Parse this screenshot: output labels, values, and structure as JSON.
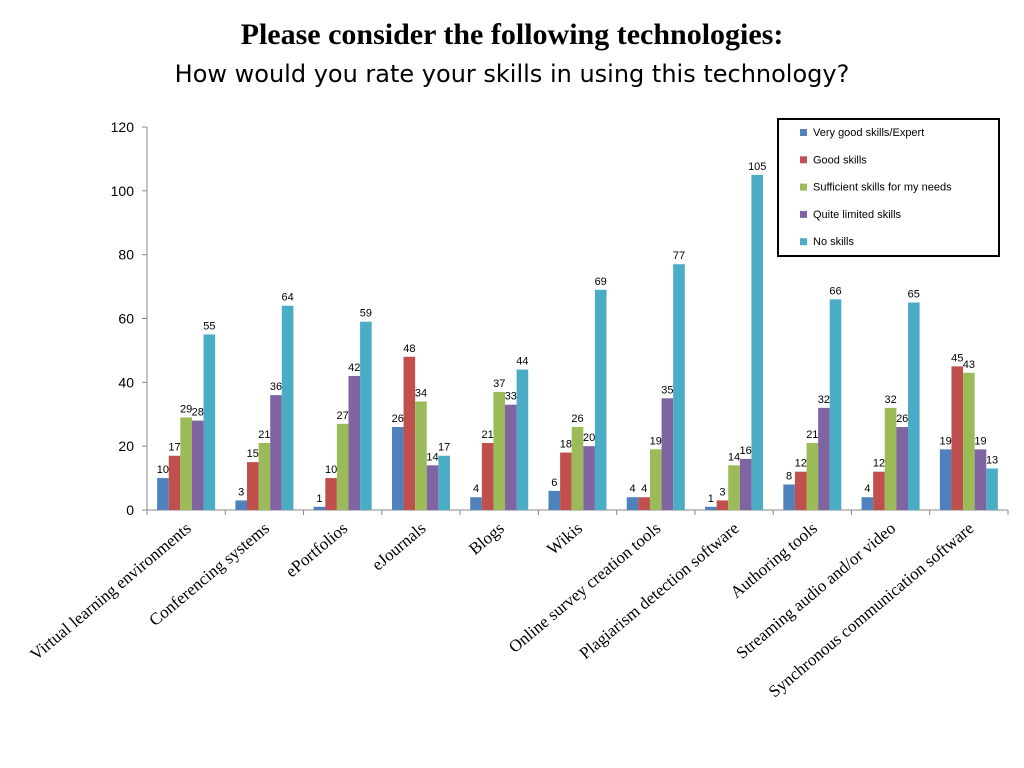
{
  "chart_data": {
    "type": "bar",
    "title": "Please consider the following technologies:",
    "subtitle": "How would you rate your skills in using this technology?",
    "xlabel": "",
    "ylabel": "",
    "ylim": [
      0,
      120
    ],
    "yticks": [
      0,
      20,
      40,
      60,
      80,
      100,
      120
    ],
    "grid": false,
    "legend_position": "top-right",
    "categories": [
      "Virtual learning environments",
      "Conferencing systems",
      "ePortfolios",
      "eJournals",
      "Blogs",
      "Wikis",
      "Online survey creation tools",
      "Plagiarism detection software",
      "Authoring tools",
      "Streaming audio and/or video",
      "Synchronous communication software"
    ],
    "series": [
      {
        "name": "Very good skills/Expert",
        "color": "#4f81bd",
        "values": [
          10,
          3,
          1,
          26,
          4,
          6,
          4,
          1,
          8,
          4,
          19
        ]
      },
      {
        "name": "Good skills",
        "color": "#c0504d",
        "values": [
          17,
          15,
          10,
          48,
          21,
          18,
          4,
          3,
          12,
          12,
          45
        ]
      },
      {
        "name": "Sufficient skills for my needs",
        "color": "#9bbb59",
        "values": [
          29,
          21,
          27,
          34,
          37,
          26,
          19,
          14,
          21,
          32,
          43
        ]
      },
      {
        "name": "Quite limited skills",
        "color": "#8064a2",
        "values": [
          28,
          36,
          42,
          14,
          33,
          20,
          35,
          16,
          32,
          26,
          19
        ]
      },
      {
        "name": "No skills",
        "color": "#4bacc6",
        "values": [
          55,
          64,
          59,
          17,
          44,
          69,
          77,
          105,
          66,
          65,
          13
        ]
      }
    ]
  }
}
